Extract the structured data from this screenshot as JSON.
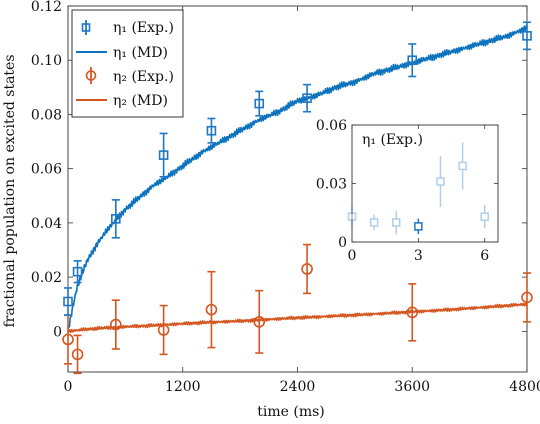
{
  "chart_data": [
    {
      "type": "line",
      "xlabel": "time (ms)",
      "ylabel": "fractional population on excited states",
      "xlim": [
        0,
        4800
      ],
      "ylim": [
        -0.015,
        0.12
      ],
      "xticks": [
        0,
        1200,
        2400,
        3600,
        4800
      ],
      "yticks": [
        0,
        0.02,
        0.04,
        0.06,
        0.08,
        0.1,
        0.12
      ],
      "ytick_labels": [
        "0",
        "0.02",
        "0.04",
        "0.06",
        "0.08",
        "0.10",
        "0.12"
      ],
      "grid": false,
      "legend_placement": "top-left",
      "series": [
        {
          "name": "η₁ (Exp.)",
          "kind": "errorbar",
          "marker": "square",
          "color": "#1f77c4",
          "points": [
            {
              "x": 0,
              "y": 0.011,
              "err": 0.005
            },
            {
              "x": 100,
              "y": 0.022,
              "err": 0.004
            },
            {
              "x": 500,
              "y": 0.0415,
              "err": 0.007
            },
            {
              "x": 1000,
              "y": 0.065,
              "err": 0.008
            },
            {
              "x": 1500,
              "y": 0.074,
              "err": 0.0045
            },
            {
              "x": 2000,
              "y": 0.084,
              "err": 0.0045
            },
            {
              "x": 2500,
              "y": 0.086,
              "err": 0.005
            },
            {
              "x": 3600,
              "y": 0.1,
              "err": 0.006
            },
            {
              "x": 4800,
              "y": 0.109,
              "err": 0.005
            }
          ]
        },
        {
          "name": "η₁ (MD)",
          "kind": "line",
          "color": "#0b72bd",
          "x": [
            0,
            50,
            100,
            200,
            300,
            400,
            500,
            600,
            700,
            800,
            900,
            1000,
            1200,
            1400,
            1600,
            1800,
            2000,
            2200,
            2400,
            2600,
            2800,
            3000,
            3200,
            3400,
            3600,
            3800,
            4000,
            4200,
            4400,
            4600,
            4800
          ],
          "y": [
            0.0,
            0.009,
            0.017,
            0.026,
            0.032,
            0.037,
            0.041,
            0.045,
            0.048,
            0.051,
            0.054,
            0.056,
            0.061,
            0.066,
            0.07,
            0.074,
            0.078,
            0.081,
            0.085,
            0.087,
            0.09,
            0.092,
            0.095,
            0.097,
            0.099,
            0.101,
            0.103,
            0.105,
            0.107,
            0.109,
            0.112
          ]
        },
        {
          "name": "η₂ (Exp.)",
          "kind": "errorbar",
          "marker": "circle",
          "color": "#d4571f",
          "points": [
            {
              "x": 0,
              "y": -0.003,
              "err": 0.009
            },
            {
              "x": 100,
              "y": -0.0085,
              "err": 0.007
            },
            {
              "x": 500,
              "y": 0.0025,
              "err": 0.009
            },
            {
              "x": 1000,
              "y": 0.0005,
              "err": 0.009
            },
            {
              "x": 1500,
              "y": 0.008,
              "err": 0.014
            },
            {
              "x": 2000,
              "y": 0.0035,
              "err": 0.0115
            },
            {
              "x": 2500,
              "y": 0.023,
              "err": 0.009
            },
            {
              "x": 3600,
              "y": 0.007,
              "err": 0.0105
            },
            {
              "x": 4800,
              "y": 0.0125,
              "err": 0.009
            }
          ]
        },
        {
          "name": "η₂ (MD)",
          "kind": "line",
          "color": "#d4571f",
          "x": [
            0,
            200,
            400,
            600,
            800,
            1000,
            1200,
            1400,
            1600,
            1800,
            2000,
            2200,
            2400,
            2600,
            2800,
            3000,
            3200,
            3400,
            3600,
            3800,
            4000,
            4200,
            4400,
            4600,
            4800
          ],
          "y": [
            0.0,
            0.0008,
            0.0013,
            0.0017,
            0.002,
            0.0024,
            0.0028,
            0.0032,
            0.0035,
            0.0038,
            0.0042,
            0.0046,
            0.005,
            0.0053,
            0.0057,
            0.006,
            0.0064,
            0.0068,
            0.0072,
            0.0076,
            0.008,
            0.0085,
            0.009,
            0.0095,
            0.01
          ]
        }
      ]
    },
    {
      "type": "scatter",
      "title": "η₁ (Exp.)",
      "xlim": [
        0,
        6.6
      ],
      "ylim": [
        0,
        0.06
      ],
      "xticks": [
        0,
        3,
        6
      ],
      "yticks": [
        0,
        0.03,
        0.06
      ],
      "ytick_labels": [
        "0",
        "0.03",
        "0.06"
      ],
      "series": [
        {
          "kind": "errorbar",
          "marker": "square",
          "color": "#1f77c4",
          "points": [
            {
              "x": 0,
              "y": 0.013,
              "err": 0.006,
              "alpha": 0.35
            },
            {
              "x": 1,
              "y": 0.01,
              "err": 0.004,
              "alpha": 0.35
            },
            {
              "x": 2,
              "y": 0.01,
              "err": 0.006,
              "alpha": 0.35
            },
            {
              "x": 3,
              "y": 0.008,
              "err": 0.004,
              "alpha": 1.0
            },
            {
              "x": 4,
              "y": 0.031,
              "err": 0.013,
              "alpha": 0.35
            },
            {
              "x": 5,
              "y": 0.039,
              "err": 0.012,
              "alpha": 0.35
            },
            {
              "x": 6,
              "y": 0.013,
              "err": 0.006,
              "alpha": 0.35
            }
          ]
        }
      ]
    }
  ]
}
